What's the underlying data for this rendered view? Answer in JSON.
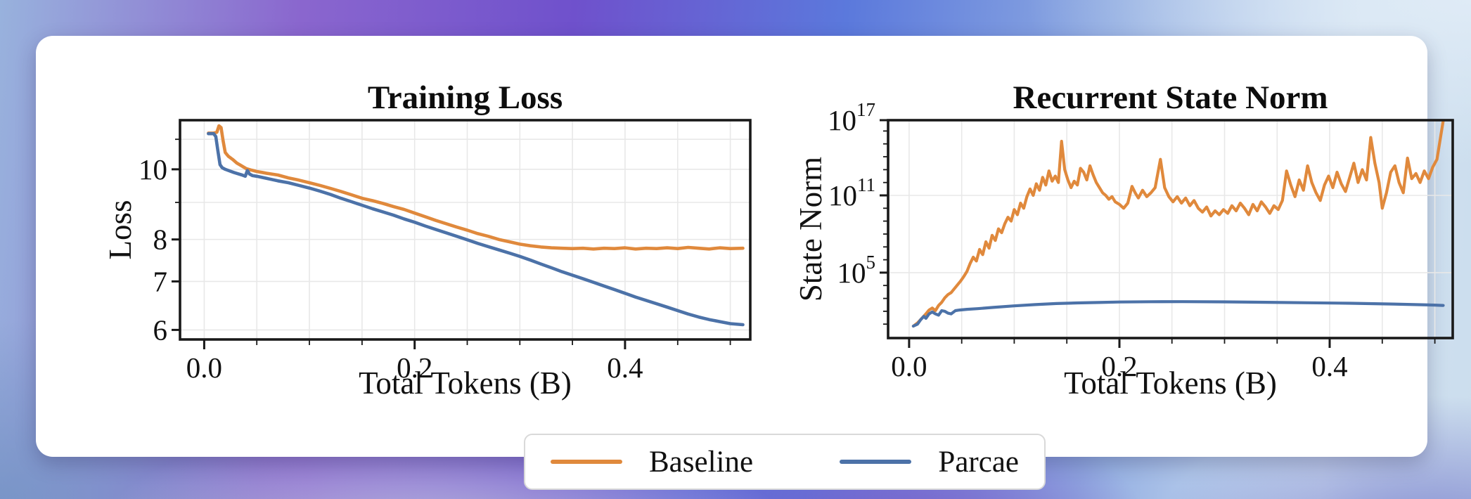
{
  "legend": {
    "items": [
      {
        "label": "Baseline",
        "color": "#E0893C"
      },
      {
        "label": "Parcae",
        "color": "#4C72A8"
      }
    ]
  },
  "colors": {
    "baseline_orange": "#E0893C",
    "parcae_blue": "#4C72A8",
    "axis_frame": "#191919",
    "gridline": "#e8e8e8",
    "card_background": "#ffffff"
  },
  "chart_data": [
    {
      "type": "line",
      "title": "Training Loss",
      "xlabel": "Total Tokens (B)",
      "ylabel": "Loss",
      "yscale": "log",
      "y_space": "value",
      "xlim": [
        -0.023,
        0.519
      ],
      "ylim": [
        5.82,
        11.69
      ],
      "x_ticks": [
        {
          "value": 0.0,
          "label": "0.0"
        },
        {
          "value": 0.2,
          "label": "0.2"
        },
        {
          "value": 0.4,
          "label": "0.4"
        }
      ],
      "x_grid": {
        "from": 0.0,
        "to": 0.5,
        "step": 0.05
      },
      "y_ticks": [
        {
          "value": 10,
          "label": "10"
        },
        {
          "value": 8,
          "label": "8"
        },
        {
          "value": 7,
          "label": "7"
        },
        {
          "value": 6,
          "label": "6"
        }
      ],
      "y_minor": [
        9,
        11
      ],
      "grid_y": [
        6,
        7,
        8,
        9,
        10,
        11
      ],
      "legend_position": "bottom-center (shared figure legend)",
      "grid": true,
      "series": [
        {
          "name": "Baseline",
          "color": "#E0893C",
          "x": [
            0.004,
            0.009,
            0.012,
            0.014,
            0.016,
            0.018,
            0.02,
            0.023,
            0.027,
            0.031,
            0.035,
            0.04,
            0.044,
            0.05,
            0.055,
            0.06,
            0.07,
            0.08,
            0.09,
            0.1,
            0.11,
            0.12,
            0.13,
            0.14,
            0.15,
            0.16,
            0.17,
            0.18,
            0.19,
            0.2,
            0.21,
            0.22,
            0.23,
            0.24,
            0.25,
            0.26,
            0.27,
            0.28,
            0.29,
            0.3,
            0.31,
            0.32,
            0.33,
            0.34,
            0.35,
            0.36,
            0.37,
            0.38,
            0.39,
            0.4,
            0.41,
            0.42,
            0.43,
            0.44,
            0.45,
            0.46,
            0.47,
            0.48,
            0.49,
            0.5,
            0.512
          ],
          "y": [
            11.22,
            11.22,
            11.25,
            11.48,
            11.42,
            10.95,
            10.55,
            10.42,
            10.32,
            10.2,
            10.12,
            10.02,
            9.98,
            9.93,
            9.9,
            9.87,
            9.82,
            9.73,
            9.66,
            9.58,
            9.5,
            9.41,
            9.32,
            9.22,
            9.12,
            9.05,
            8.97,
            8.88,
            8.8,
            8.7,
            8.6,
            8.5,
            8.41,
            8.32,
            8.24,
            8.15,
            8.08,
            8.0,
            7.94,
            7.88,
            7.84,
            7.81,
            7.79,
            7.78,
            7.77,
            7.78,
            7.76,
            7.78,
            7.77,
            7.79,
            7.76,
            7.78,
            7.77,
            7.79,
            7.77,
            7.8,
            7.78,
            7.76,
            7.79,
            7.77,
            7.78
          ]
        },
        {
          "name": "Parcae",
          "color": "#4C72A8",
          "x": [
            0.004,
            0.009,
            0.011,
            0.013,
            0.015,
            0.017,
            0.02,
            0.024,
            0.028,
            0.032,
            0.036,
            0.039,
            0.041,
            0.043,
            0.046,
            0.05,
            0.06,
            0.07,
            0.08,
            0.09,
            0.1,
            0.11,
            0.12,
            0.13,
            0.14,
            0.15,
            0.16,
            0.17,
            0.18,
            0.19,
            0.2,
            0.21,
            0.22,
            0.23,
            0.24,
            0.25,
            0.26,
            0.27,
            0.28,
            0.29,
            0.3,
            0.31,
            0.32,
            0.33,
            0.34,
            0.35,
            0.36,
            0.37,
            0.38,
            0.39,
            0.4,
            0.41,
            0.42,
            0.43,
            0.44,
            0.45,
            0.46,
            0.47,
            0.48,
            0.49,
            0.5,
            0.512
          ],
          "y": [
            11.2,
            11.2,
            11.1,
            10.6,
            10.15,
            10.05,
            10.0,
            9.95,
            9.9,
            9.86,
            9.82,
            9.78,
            9.96,
            9.85,
            9.8,
            9.78,
            9.71,
            9.64,
            9.58,
            9.5,
            9.42,
            9.33,
            9.23,
            9.12,
            9.02,
            8.92,
            8.82,
            8.73,
            8.64,
            8.54,
            8.45,
            8.35,
            8.26,
            8.17,
            8.08,
            7.99,
            7.9,
            7.82,
            7.74,
            7.66,
            7.58,
            7.49,
            7.4,
            7.31,
            7.22,
            7.14,
            7.06,
            6.98,
            6.9,
            6.82,
            6.74,
            6.66,
            6.59,
            6.52,
            6.45,
            6.38,
            6.31,
            6.25,
            6.2,
            6.16,
            6.12,
            6.1
          ]
        }
      ]
    },
    {
      "type": "line",
      "title": "Recurrent State Norm",
      "xlabel": "Total Tokens (B)",
      "ylabel": "State Norm",
      "yscale": "log",
      "y_space": "exp",
      "xlim": [
        -0.02,
        0.517
      ],
      "ylim": [
        -0.08,
        16.84
      ],
      "x_ticks": [
        {
          "value": 0.0,
          "label": "0.0"
        },
        {
          "value": 0.2,
          "label": "0.2"
        },
        {
          "value": 0.4,
          "label": "0.4"
        }
      ],
      "x_grid": {
        "from": 0.0,
        "to": 0.5,
        "step": 0.05
      },
      "y_ticks": [
        {
          "exp": 17,
          "base": "10",
          "exp_label": "17"
        },
        {
          "exp": 11,
          "base": "10",
          "exp_label": "11"
        },
        {
          "exp": 5,
          "base": "10",
          "exp_label": "5"
        }
      ],
      "y_minor": [
        0,
        1,
        2,
        3,
        4,
        6,
        7,
        8,
        9,
        10,
        12,
        13,
        14,
        15,
        16
      ],
      "grid_y": [
        5,
        11
      ],
      "legend_position": "bottom-center (shared figure legend)",
      "grid": true,
      "series": [
        {
          "name": "Baseline",
          "color": "#E0893C",
          "x": [
            0.004,
            0.008,
            0.012,
            0.016,
            0.019,
            0.022,
            0.025,
            0.028,
            0.031,
            0.034,
            0.037,
            0.04,
            0.043,
            0.046,
            0.049,
            0.052,
            0.055,
            0.058,
            0.061,
            0.064,
            0.067,
            0.07,
            0.073,
            0.076,
            0.079,
            0.082,
            0.085,
            0.088,
            0.091,
            0.094,
            0.097,
            0.1,
            0.103,
            0.106,
            0.109,
            0.112,
            0.115,
            0.118,
            0.121,
            0.124,
            0.127,
            0.13,
            0.133,
            0.136,
            0.139,
            0.142,
            0.145,
            0.148,
            0.151,
            0.154,
            0.157,
            0.16,
            0.163,
            0.166,
            0.169,
            0.172,
            0.175,
            0.178,
            0.181,
            0.184,
            0.187,
            0.19,
            0.193,
            0.196,
            0.2,
            0.204,
            0.208,
            0.212,
            0.215,
            0.218,
            0.222,
            0.226,
            0.23,
            0.234,
            0.239,
            0.243,
            0.247,
            0.251,
            0.255,
            0.259,
            0.263,
            0.267,
            0.271,
            0.275,
            0.279,
            0.283,
            0.287,
            0.291,
            0.295,
            0.299,
            0.303,
            0.307,
            0.311,
            0.315,
            0.319,
            0.323,
            0.327,
            0.331,
            0.335,
            0.339,
            0.343,
            0.347,
            0.351,
            0.355,
            0.359,
            0.363,
            0.367,
            0.371,
            0.375,
            0.379,
            0.383,
            0.387,
            0.391,
            0.395,
            0.399,
            0.403,
            0.407,
            0.411,
            0.415,
            0.419,
            0.423,
            0.427,
            0.431,
            0.435,
            0.439,
            0.443,
            0.447,
            0.45,
            0.454,
            0.458,
            0.462,
            0.466,
            0.47,
            0.474,
            0.478,
            0.482,
            0.486,
            0.49,
            0.494,
            0.498,
            0.502,
            0.508
          ],
          "y": [
            0.85,
            1.1,
            1.45,
            1.8,
            2.1,
            2.25,
            2.05,
            2.45,
            2.7,
            3.05,
            3.3,
            3.45,
            3.75,
            4.05,
            4.35,
            4.7,
            5.1,
            5.7,
            6.2,
            5.9,
            6.8,
            6.4,
            7.4,
            6.9,
            7.9,
            7.5,
            8.4,
            8.1,
            8.8,
            9.3,
            9.0,
            9.9,
            9.5,
            10.4,
            10.0,
            10.9,
            11.5,
            11.0,
            11.9,
            11.4,
            12.4,
            11.8,
            12.9,
            12.1,
            12.5,
            12.0,
            15.2,
            13.0,
            12.2,
            11.6,
            12.1,
            11.8,
            13.1,
            12.8,
            12.2,
            13.3,
            12.6,
            12.0,
            11.6,
            11.2,
            11.0,
            10.7,
            10.9,
            10.5,
            10.3,
            10.0,
            10.4,
            11.7,
            11.2,
            10.8,
            11.4,
            10.9,
            11.2,
            11.6,
            13.8,
            11.6,
            10.9,
            10.5,
            10.9,
            10.4,
            10.8,
            10.2,
            10.6,
            10.0,
            9.7,
            10.1,
            9.4,
            9.8,
            9.5,
            9.9,
            9.6,
            10.2,
            9.8,
            10.4,
            10.0,
            9.5,
            10.3,
            9.8,
            10.5,
            10.1,
            9.6,
            10.2,
            9.9,
            10.6,
            12.9,
            11.8,
            10.9,
            12.2,
            11.4,
            13.3,
            12.0,
            11.2,
            10.6,
            11.8,
            12.5,
            11.6,
            12.8,
            11.9,
            11.3,
            12.4,
            13.5,
            12.0,
            13.0,
            12.2,
            15.5,
            13.5,
            12.0,
            10.0,
            11.2,
            12.8,
            13.3,
            12.0,
            11.2,
            13.9,
            12.3,
            12.7,
            12.0,
            12.9,
            12.3,
            13.2,
            13.8,
            16.8
          ]
        },
        {
          "name": "Parcae",
          "color": "#4C72A8",
          "x": [
            0.004,
            0.008,
            0.011,
            0.014,
            0.016,
            0.019,
            0.022,
            0.025,
            0.028,
            0.031,
            0.034,
            0.037,
            0.04,
            0.044,
            0.048,
            0.055,
            0.065,
            0.08,
            0.1,
            0.12,
            0.14,
            0.16,
            0.18,
            0.2,
            0.23,
            0.26,
            0.3,
            0.34,
            0.38,
            0.42,
            0.46,
            0.5,
            0.508
          ],
          "y": [
            0.85,
            1.0,
            1.35,
            1.6,
            1.45,
            1.8,
            1.95,
            1.8,
            1.7,
            2.05,
            2.0,
            1.85,
            1.8,
            2.05,
            2.1,
            2.15,
            2.2,
            2.3,
            2.42,
            2.52,
            2.6,
            2.65,
            2.68,
            2.72,
            2.74,
            2.75,
            2.73,
            2.7,
            2.66,
            2.62,
            2.56,
            2.48,
            2.45
          ]
        }
      ]
    }
  ]
}
